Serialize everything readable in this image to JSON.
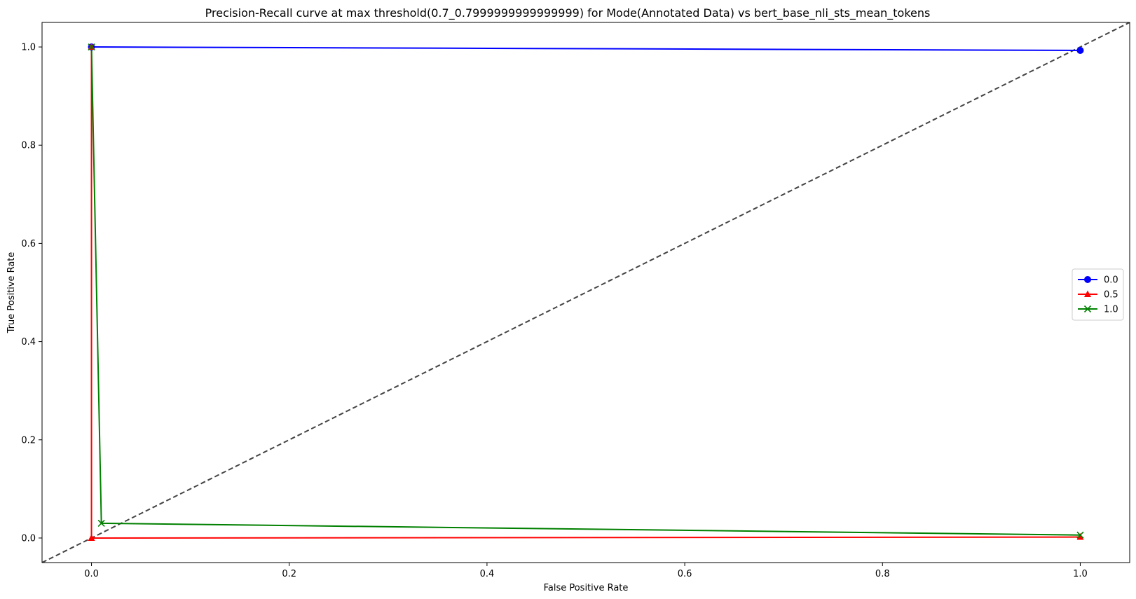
{
  "chart_data": {
    "type": "line",
    "title": "Precision-Recall curve at max threshold(0.7_0.7999999999999999) for Mode(Annotated Data) vs bert_base_nli_sts_mean_tokens",
    "xlabel": "False Positive Rate",
    "ylabel": "True Positive Rate",
    "xlim": [
      -0.05,
      1.05
    ],
    "ylim": [
      -0.05,
      1.05
    ],
    "xticks": [
      0.0,
      0.2,
      0.4,
      0.6,
      0.8,
      1.0
    ],
    "xtick_labels": [
      "0.0",
      "0.2",
      "0.4",
      "0.6",
      "0.8",
      "1.0"
    ],
    "yticks": [
      0.0,
      0.2,
      0.4,
      0.6,
      0.8,
      1.0
    ],
    "ytick_labels": [
      "0.0",
      "0.2",
      "0.4",
      "0.6",
      "0.8",
      "1.0"
    ],
    "grid": false,
    "legend_position": "center-right",
    "series": [
      {
        "name": "0.0",
        "color": "#0000ff",
        "marker": "circle",
        "x": [
          0.0,
          1.0
        ],
        "y": [
          1.0,
          0.993
        ]
      },
      {
        "name": "0.5",
        "color": "#ff0000",
        "marker": "triangle",
        "x": [
          0.0,
          0.0,
          1.0
        ],
        "y": [
          1.0,
          0.0,
          0.002
        ]
      },
      {
        "name": "1.0",
        "color": "#008000",
        "marker": "x",
        "x": [
          0.0,
          0.01,
          1.0
        ],
        "y": [
          1.0,
          0.03,
          0.006
        ]
      }
    ],
    "reference_line": {
      "x": [
        -0.05,
        1.05
      ],
      "y": [
        -0.05,
        1.05
      ],
      "color": "#444444",
      "style": "dashed"
    }
  }
}
